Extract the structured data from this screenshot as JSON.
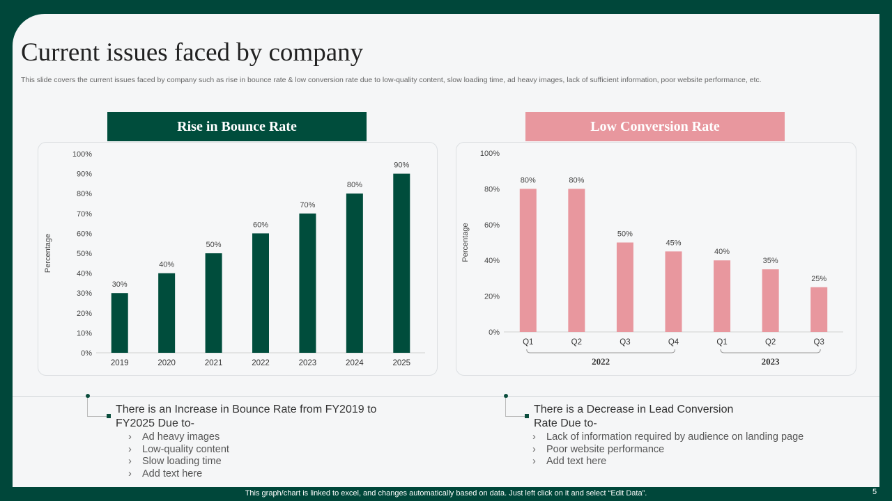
{
  "slide": {
    "title": "Current issues faced by company",
    "description": "This slide covers the current issues faced by company such as rise in bounce rate & low conversion rate due to low-quality content, slow loading time, ad heavy images, lack of sufficient information, poor website performance, etc.",
    "footer_note": "This graph/chart is linked to excel, and changes automatically based on data. Just left click on it and select “Edit Data”.",
    "page_number": "5"
  },
  "colors": {
    "background": "#00473a",
    "bounce_bar": "#004d3c",
    "conversion_bar": "#e8979e"
  },
  "left_panel": {
    "banner": "Rise in Bounce Rate",
    "heading": "There is an Increase in Bounce Rate from FY2019 to FY2025 Due to-",
    "reasons": [
      "Ad heavy images",
      "Low-quality content",
      "Slow loading time",
      "Add text here"
    ]
  },
  "right_panel": {
    "banner": "Low Conversion Rate",
    "heading": "There is a Decrease in Lead Conversion Rate Due to-",
    "reasons": [
      "Lack of information required by audience on landing page",
      "Poor website performance",
      "Add text here"
    ]
  },
  "chart_data": [
    {
      "type": "bar",
      "ylabel": "Percentage",
      "ylim": [
        0,
        100
      ],
      "yticks": [
        "0%",
        "10%",
        "20%",
        "30%",
        "40%",
        "50%",
        "60%",
        "70%",
        "80%",
        "90%",
        "100%"
      ],
      "categories": [
        "2019",
        "2020",
        "2021",
        "2022",
        "2023",
        "2024",
        "2025"
      ],
      "values": [
        30,
        40,
        50,
        60,
        70,
        80,
        90
      ],
      "data_labels": [
        "30%",
        "40%",
        "50%",
        "60%",
        "70%",
        "80%",
        "90%"
      ],
      "grid": false
    },
    {
      "type": "bar",
      "ylabel": "Percentage",
      "ylim": [
        0,
        100
      ],
      "yticks": [
        "0%",
        "20%",
        "40%",
        "60%",
        "80%",
        "100%"
      ],
      "categories": [
        "Q1",
        "Q2",
        "Q3",
        "Q4",
        "Q1",
        "Q2",
        "Q3"
      ],
      "groups": [
        {
          "label": "2022",
          "count": 4
        },
        {
          "label": "2023",
          "count": 3
        }
      ],
      "values": [
        80,
        80,
        50,
        45,
        40,
        35,
        25
      ],
      "data_labels": [
        "80%",
        "80%",
        "50%",
        "45%",
        "40%",
        "35%",
        "25%"
      ],
      "grid": false
    }
  ]
}
